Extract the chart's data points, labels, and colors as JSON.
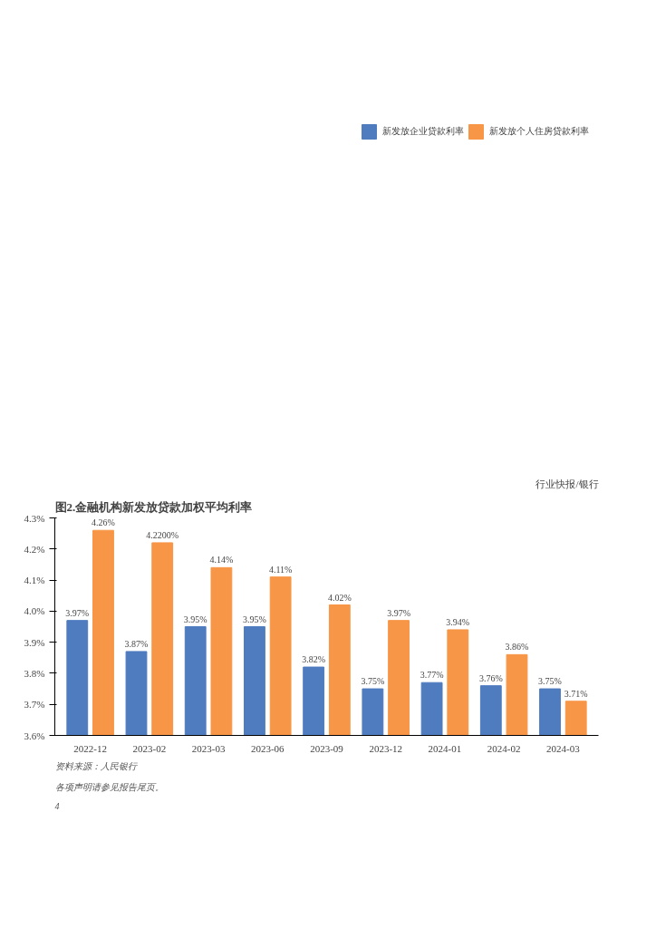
{
  "chart_data": {
    "type": "bar",
    "title": "图2.金融机构新发放贷款加权平均利率",
    "categories": [
      "2022-12",
      "2023-02",
      "2023-03",
      "2023-06",
      "2023-09",
      "2023-12",
      "2024-01",
      "2024-02",
      "2024-03"
    ],
    "series": [
      {
        "name": "新发放企业贷款利率",
        "color": "#4f7bbf",
        "values": [
          3.97,
          3.87,
          3.95,
          3.95,
          3.82,
          3.75,
          3.77,
          3.76,
          3.75
        ],
        "value_labels": [
          "3.97%",
          "3.87%",
          "3.95%",
          "3.95%",
          "3.82%",
          "3.75%",
          "3.77%",
          "3.76%",
          "3.75%"
        ]
      },
      {
        "name": "新发放个人住房贷款利率",
        "color": "#f79646",
        "values": [
          4.26,
          4.22,
          4.14,
          4.11,
          4.02,
          3.97,
          3.94,
          3.86,
          3.71
        ],
        "value_labels": [
          "4.26%",
          "4.2200%",
          "4.14%",
          "4.11%",
          "4.02%",
          "3.97%",
          "3.94%",
          "3.86%",
          "3.71%"
        ]
      }
    ],
    "ylim": [
      3.6,
      4.3
    ],
    "yticks": [
      {
        "value": 3.6,
        "label": "3.6%"
      },
      {
        "value": 3.7,
        "label": "3.7%"
      },
      {
        "value": 3.8,
        "label": "3.8%"
      },
      {
        "value": 3.9,
        "label": "3.9%"
      },
      {
        "value": 4.0,
        "label": "4.0%"
      },
      {
        "value": 4.1,
        "label": "4.1%"
      },
      {
        "value": 4.2,
        "label": "4.2%"
      },
      {
        "value": 4.3,
        "label": "4.3%"
      }
    ],
    "grid": false,
    "legend": "top",
    "annotations": [
      "行业快报/银行",
      "资料来源：人民银行",
      "各项声明请参见报告尾页。",
      "4"
    ]
  }
}
